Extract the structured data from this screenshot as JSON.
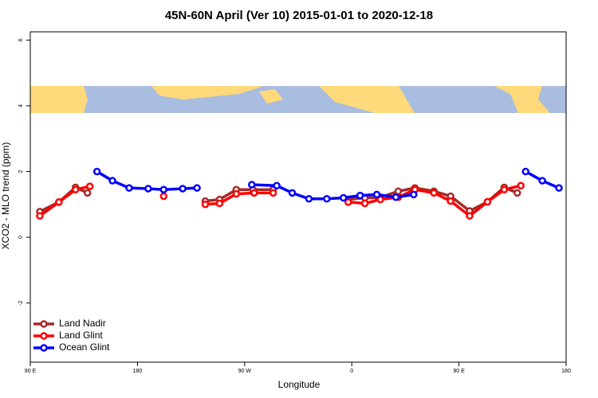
{
  "chart_data": {
    "type": "line",
    "title": "45N-60N April (Ver 10)   2015-01-01 to 2020-12-18",
    "xlabel": "Longitude",
    "ylabel": "XCO2 - MLO trend (ppm)",
    "xlim": [
      90,
      540
    ],
    "ylim": [
      -3.8,
      6.25
    ],
    "xticks": [
      {
        "value": 90,
        "label": "90 E"
      },
      180,
      {
        "value": 270,
        "label": "90 W"
      },
      {
        "value": 360,
        "label": "0"
      },
      {
        "value": 450,
        "label": "90 E"
      },
      {
        "value": 540,
        "label": "180"
      }
    ],
    "yticks": [
      -2,
      0,
      2,
      4,
      6
    ],
    "legend": "bottom-left",
    "series": [
      {
        "name": "Land Nadir",
        "color": "#a52a2a",
        "x": [
          98,
          114,
          128,
          138,
          null,
          237,
          249,
          263,
          277,
          294,
          null,
          357,
          371,
          383,
          399,
          413,
          429,
          443,
          459,
          474,
          488,
          499
        ],
        "values": [
          0.78,
          1.07,
          1.52,
          1.35,
          null,
          1.1,
          1.15,
          1.45,
          1.45,
          1.45,
          null,
          1.15,
          1.2,
          1.2,
          1.4,
          1.5,
          1.4,
          1.25,
          0.8,
          1.08,
          1.52,
          1.35
        ]
      },
      {
        "name": "Land Glint",
        "color": "#ff0000",
        "x": [
          98,
          114,
          128,
          140,
          null,
          202,
          null,
          237,
          249,
          263,
          278,
          294,
          null,
          357,
          371,
          384,
          399,
          413,
          429,
          443,
          459,
          474,
          488,
          502
        ],
        "values": [
          0.65,
          1.07,
          1.45,
          1.55,
          null,
          1.25,
          null,
          1.0,
          1.03,
          1.32,
          1.35,
          1.35,
          null,
          1.07,
          1.03,
          1.15,
          1.22,
          1.45,
          1.35,
          1.1,
          0.65,
          1.08,
          1.45,
          1.57
        ]
      },
      {
        "name": "Ocean Glint",
        "color": "#0000ff",
        "x": [
          146,
          159,
          173,
          189,
          202,
          218,
          230,
          null,
          276,
          297,
          310,
          324,
          339,
          353,
          367,
          381,
          397,
          412,
          null,
          506,
          520,
          534
        ],
        "values": [
          2.0,
          1.72,
          1.5,
          1.48,
          1.45,
          1.48,
          1.5,
          null,
          1.6,
          1.57,
          1.35,
          1.17,
          1.17,
          1.2,
          1.27,
          1.3,
          1.22,
          1.3,
          null,
          2.0,
          1.72,
          1.5
        ]
      }
    ]
  }
}
